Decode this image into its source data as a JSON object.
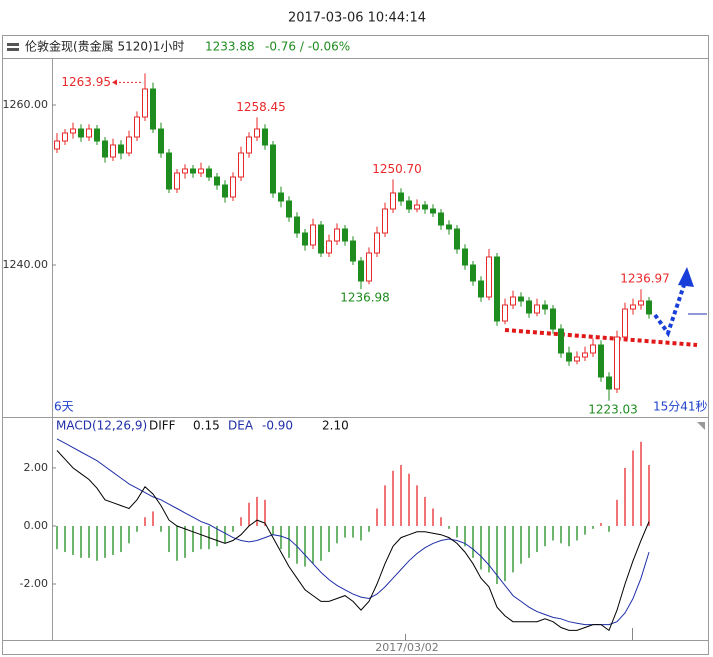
{
  "header": {
    "time": "2017-03-06 10:44:14"
  },
  "chart_data": {
    "type": "candlestick",
    "title": "伦敦金现(贵金属 5120)1小时",
    "last_price": 1233.88,
    "change": "-0.76 / -0.06%",
    "up_color": "#e8292b",
    "down_color": "#1e8c1e",
    "ylim": [
      1221.25,
      1265.625
    ],
    "yticks": [
      {
        "value": 1260,
        "label": "1260.00"
      },
      {
        "value": 1240,
        "label": "1240.00"
      }
    ],
    "candles": [
      [
        1254.5,
        1256.5,
        1254,
        1255.5
      ],
      [
        1255.5,
        1257,
        1255,
        1256.5
      ],
      [
        1256.5,
        1257.8,
        1255.8,
        1257
      ],
      [
        1257,
        1257.6,
        1255.4,
        1256
      ],
      [
        1256,
        1257.6,
        1255.5,
        1257
      ],
      [
        1257,
        1257.5,
        1255,
        1255.5
      ],
      [
        1255.5,
        1256,
        1252.8,
        1253.5
      ],
      [
        1253.5,
        1255.8,
        1253,
        1255
      ],
      [
        1255,
        1255.6,
        1253.2,
        1254
      ],
      [
        1254,
        1256.8,
        1253.6,
        1256
      ],
      [
        1256,
        1259.2,
        1255.5,
        1258.5
      ],
      [
        1258.5,
        1263.95,
        1258,
        1262
      ],
      [
        1262,
        1262.8,
        1256.5,
        1257
      ],
      [
        1257,
        1257.8,
        1253.4,
        1254
      ],
      [
        1254,
        1254.5,
        1249,
        1249.5
      ],
      [
        1249.5,
        1252,
        1249,
        1251.5
      ],
      [
        1251.5,
        1252.6,
        1250.8,
        1252
      ],
      [
        1252,
        1252.5,
        1250.9,
        1251.5
      ],
      [
        1251.5,
        1252.8,
        1251,
        1252
      ],
      [
        1252,
        1252.4,
        1250.5,
        1251
      ],
      [
        1251,
        1251.5,
        1249.4,
        1250
      ],
      [
        1250,
        1250.6,
        1247.8,
        1248.5
      ],
      [
        1248.5,
        1251.6,
        1248,
        1251
      ],
      [
        1251,
        1254.8,
        1250.5,
        1254
      ],
      [
        1254,
        1256.6,
        1253.4,
        1256
      ],
      [
        1256,
        1258.45,
        1255.5,
        1257
      ],
      [
        1257,
        1257.6,
        1254.4,
        1255
      ],
      [
        1255,
        1255.5,
        1248.4,
        1249
      ],
      [
        1249,
        1249.8,
        1247.2,
        1248
      ],
      [
        1248,
        1248.6,
        1245.4,
        1246
      ],
      [
        1246,
        1246.6,
        1243.4,
        1244
      ],
      [
        1244,
        1244.5,
        1241.8,
        1242.5
      ],
      [
        1242.5,
        1245.8,
        1242,
        1245
      ],
      [
        1245,
        1245.5,
        1241,
        1241.5
      ],
      [
        1241.5,
        1243.8,
        1241,
        1243
      ],
      [
        1243,
        1245.2,
        1242.5,
        1244.5
      ],
      [
        1244.5,
        1245,
        1242.4,
        1243
      ],
      [
        1243,
        1243.6,
        1240,
        1240.5
      ],
      [
        1240.5,
        1241,
        1236.98,
        1238
      ],
      [
        1238,
        1242.2,
        1237.6,
        1241.5
      ],
      [
        1241.5,
        1244.8,
        1241,
        1244
      ],
      [
        1244,
        1247.8,
        1243.5,
        1247
      ],
      [
        1247,
        1250.7,
        1246.5,
        1249
      ],
      [
        1249,
        1249.6,
        1247.4,
        1248
      ],
      [
        1248,
        1248.6,
        1246.5,
        1247
      ],
      [
        1247,
        1248.2,
        1246.6,
        1247.5
      ],
      [
        1247.5,
        1248,
        1246.4,
        1247
      ],
      [
        1247,
        1247.6,
        1246,
        1246.5
      ],
      [
        1246.5,
        1247,
        1244.4,
        1245
      ],
      [
        1245,
        1245.6,
        1243.8,
        1244.5
      ],
      [
        1244.5,
        1245,
        1241.4,
        1242
      ],
      [
        1242,
        1242.6,
        1239.4,
        1240
      ],
      [
        1240,
        1240.5,
        1237.4,
        1238
      ],
      [
        1238,
        1238.6,
        1235.4,
        1236
      ],
      [
        1236,
        1242,
        1235.6,
        1241
      ],
      [
        1241,
        1241.5,
        1232.4,
        1233
      ],
      [
        1233,
        1235.8,
        1232.6,
        1235
      ],
      [
        1235,
        1236.8,
        1234.5,
        1236
      ],
      [
        1236,
        1236.6,
        1234.8,
        1235.5
      ],
      [
        1235.5,
        1236,
        1233.4,
        1234
      ],
      [
        1234,
        1235.8,
        1233.6,
        1235
      ],
      [
        1235,
        1235.6,
        1233.8,
        1234.5
      ],
      [
        1234.5,
        1235,
        1231.4,
        1232
      ],
      [
        1232,
        1232.6,
        1228.4,
        1229
      ],
      [
        1229,
        1229.8,
        1227.4,
        1228
      ],
      [
        1228,
        1229.2,
        1227.6,
        1228.5
      ],
      [
        1228.5,
        1229.8,
        1228,
        1229
      ],
      [
        1229,
        1230.8,
        1228.5,
        1230
      ],
      [
        1230,
        1230.6,
        1225.4,
        1226
      ],
      [
        1226,
        1226.6,
        1223.03,
        1224.5
      ],
      [
        1224.5,
        1231.8,
        1224,
        1231
      ],
      [
        1231,
        1235.3,
        1230.5,
        1234.5
      ],
      [
        1234.5,
        1235.8,
        1233.8,
        1235
      ],
      [
        1235,
        1236.97,
        1234.4,
        1235.5
      ],
      [
        1235.5,
        1236,
        1233.3,
        1233.88
      ]
    ],
    "annotations": [
      1263.95,
      1258.45,
      {
        "value": 1250.7,
        "label": "1250.70"
      },
      1236.98,
      1236.97,
      1223.03
    ],
    "left_note": "6天",
    "countdown": "15分41秒",
    "x_label": "2017/03/02",
    "macd": {
      "title": "MACD(12,26,9)",
      "diff_name": "DIFF",
      "diff_value": 0.15,
      "dea_name": "DEA",
      "dea_value": {
        "value": -0.9,
        "label": "-0.90"
      },
      "macd_value": {
        "value": 2.1,
        "label": "2.10"
      },
      "diff_color": "#000000",
      "dea_color": "#1f2fa8",
      "ylim": [
        -3.93,
        3.72
      ],
      "yticks": [
        {
          "value": 2,
          "label": "2.00"
        },
        {
          "value": 0,
          "label": "0.00"
        },
        {
          "value": -2,
          "label": "-2.00"
        }
      ],
      "diff": [
        2.6,
        2.3,
        2.0,
        1.8,
        1.6,
        1.3,
        0.9,
        0.8,
        0.7,
        0.6,
        0.9,
        1.35,
        1.1,
        0.7,
        0.2,
        0.0,
        -0.1,
        -0.2,
        -0.3,
        -0.4,
        -0.5,
        -0.6,
        -0.5,
        -0.3,
        0.0,
        0.2,
        0.1,
        -0.4,
        -0.9,
        -1.4,
        -1.8,
        -2.2,
        -2.4,
        -2.6,
        -2.6,
        -2.5,
        -2.4,
        -2.6,
        -2.9,
        -2.6,
        -2.0,
        -1.3,
        -0.7,
        -0.4,
        -0.3,
        -0.2,
        -0.2,
        -0.25,
        -0.3,
        -0.4,
        -0.6,
        -0.9,
        -1.3,
        -1.8,
        -2.1,
        -2.8,
        -3.1,
        -3.3,
        -3.3,
        -3.3,
        -3.3,
        -3.2,
        -3.3,
        -3.5,
        -3.6,
        -3.6,
        -3.5,
        -3.4,
        -3.4,
        -3.6,
        -2.9,
        -2.0,
        -1.2,
        -0.5,
        0.15
      ],
      "dea": [
        3.0,
        2.85,
        2.7,
        2.55,
        2.4,
        2.25,
        2.05,
        1.85,
        1.65,
        1.45,
        1.3,
        1.15,
        1.0,
        0.9,
        0.75,
        0.6,
        0.45,
        0.3,
        0.15,
        0.05,
        -0.1,
        -0.25,
        -0.4,
        -0.5,
        -0.55,
        -0.5,
        -0.4,
        -0.3,
        -0.35,
        -0.45,
        -0.7,
        -1.0,
        -1.3,
        -1.6,
        -1.85,
        -2.05,
        -2.2,
        -2.35,
        -2.45,
        -2.5,
        -2.35,
        -2.1,
        -1.8,
        -1.5,
        -1.2,
        -0.95,
        -0.75,
        -0.6,
        -0.5,
        -0.45,
        -0.5,
        -0.6,
        -0.8,
        -1.05,
        -1.35,
        -1.7,
        -2.05,
        -2.4,
        -2.6,
        -2.8,
        -2.95,
        -3.05,
        -3.15,
        -3.2,
        -3.3,
        -3.35,
        -3.4,
        -3.4,
        -3.4,
        -3.4,
        -3.3,
        -3.0,
        -2.5,
        -1.8,
        -0.9
      ],
      "hist": [
        -0.8,
        -0.9,
        -1.0,
        -1.1,
        -1.1,
        -1.2,
        -1.1,
        -1.0,
        -0.9,
        -0.6,
        -0.2,
        0.3,
        0.5,
        -0.2,
        -0.9,
        -1.2,
        -1.1,
        -0.9,
        -0.8,
        -0.8,
        -0.7,
        -0.6,
        -0.2,
        0.3,
        0.8,
        1.0,
        0.9,
        -0.3,
        -0.8,
        -1.1,
        -1.3,
        -1.4,
        -1.3,
        -1.2,
        -0.9,
        -0.6,
        -0.4,
        -0.4,
        -0.5,
        -0.2,
        0.6,
        1.4,
        1.9,
        2.1,
        1.8,
        1.4,
        1.0,
        0.6,
        0.3,
        -0.1,
        -0.4,
        -0.7,
        -1.1,
        -1.5,
        -1.6,
        -2.0,
        -1.9,
        -1.6,
        -1.3,
        -1.1,
        -0.9,
        -0.7,
        -0.5,
        -0.6,
        -0.7,
        -0.5,
        -0.3,
        -0.1,
        0.1,
        -0.2,
        0.9,
        2.0,
        2.6,
        2.9,
        2.1
      ]
    }
  }
}
